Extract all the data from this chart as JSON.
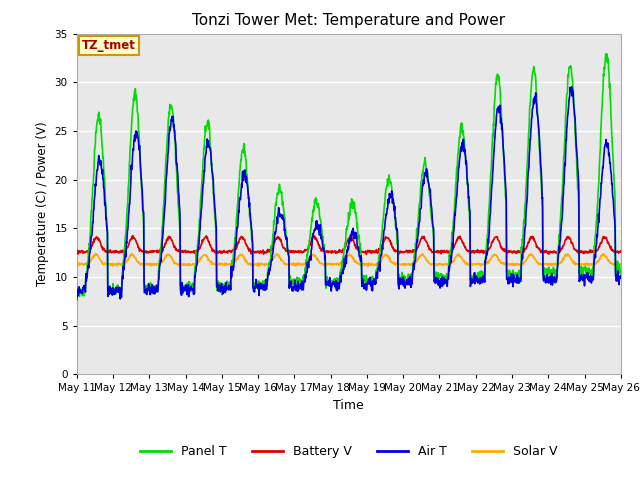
{
  "title": "Tonzi Tower Met: Temperature and Power",
  "xlabel": "Time",
  "ylabel": "Temperature (C) / Power (V)",
  "ylim": [
    0,
    35
  ],
  "yticks": [
    0,
    5,
    10,
    15,
    20,
    25,
    30,
    35
  ],
  "x_tick_labels": [
    "May 11",
    "May 12",
    "May 13",
    "May 14",
    "May 15",
    "May 16",
    "May 17",
    "May 18",
    "May 19",
    "May 20",
    "May 21",
    "May 22",
    "May 23",
    "May 24",
    "May 25",
    "May 26"
  ],
  "annotation_text": "TZ_tmet",
  "annotation_bg": "#ffffcc",
  "annotation_border": "#cc9900",
  "annotation_text_color": "#aa0000",
  "bg_color": "#e8e8e8",
  "panel_t_color": "#00dd00",
  "battery_v_color": "#dd0000",
  "air_t_color": "#0000dd",
  "solar_v_color": "#ffaa00",
  "line_width": 1.2,
  "n_days": 15,
  "n_per_day": 96
}
